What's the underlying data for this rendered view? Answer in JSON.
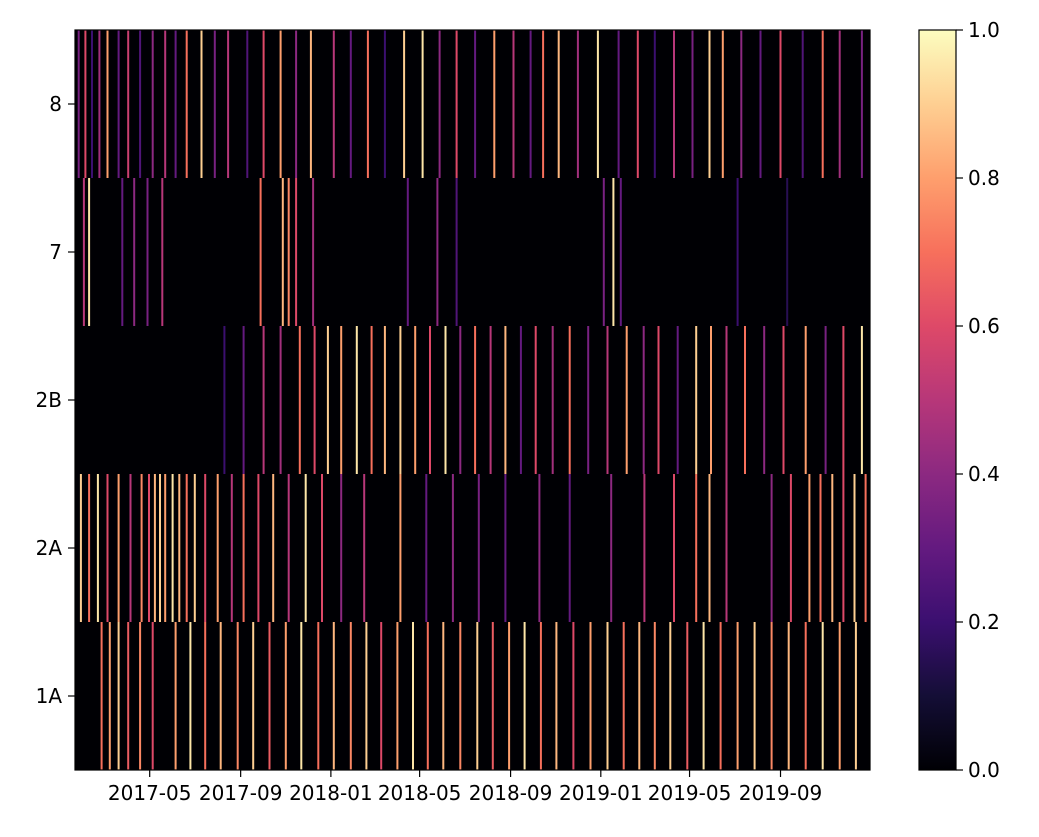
{
  "chart_data": {
    "type": "heatmap",
    "title": "",
    "xlabel": "",
    "ylabel": "",
    "rows": [
      "8",
      "7",
      "2B",
      "2A",
      "1A"
    ],
    "x_axis": {
      "type": "date",
      "range": [
        "2017-01-20",
        "2019-12-31"
      ],
      "tick_labels": [
        "2017-05",
        "2017-09",
        "2018-01",
        "2018-05",
        "2018-09",
        "2019-01",
        "2019-05",
        "2019-09"
      ],
      "tick_dates": [
        "2017-05-01",
        "2017-09-01",
        "2018-01-01",
        "2018-05-01",
        "2018-09-01",
        "2019-01-01",
        "2019-05-01",
        "2019-09-01"
      ]
    },
    "value_range": [
      0,
      1
    ],
    "colormap": "magma",
    "colorbar": {
      "tick_labels": [
        "0.0",
        "0.2",
        "0.4",
        "0.6",
        "0.8",
        "1.0"
      ],
      "tick_values": [
        0,
        0.2,
        0.4,
        0.6,
        0.8,
        1.0
      ]
    },
    "stripes": {
      "8": [
        [
          "2017-01-25",
          0.35
        ],
        [
          "2017-02-03",
          0.6
        ],
        [
          "2017-02-12",
          0.2
        ],
        [
          "2017-02-22",
          0.45
        ],
        [
          "2017-03-05",
          0.8
        ],
        [
          "2017-03-20",
          0.3
        ],
        [
          "2017-04-02",
          0.55
        ],
        [
          "2017-04-18",
          0.25
        ],
        [
          "2017-05-05",
          0.4
        ],
        [
          "2017-05-22",
          0.5
        ],
        [
          "2017-06-05",
          0.3
        ],
        [
          "2017-06-20",
          0.7
        ],
        [
          "2017-07-10",
          0.9
        ],
        [
          "2017-07-28",
          0.35
        ],
        [
          "2017-08-15",
          0.5
        ],
        [
          "2017-09-10",
          0.25
        ],
        [
          "2017-10-02",
          0.6
        ],
        [
          "2017-10-25",
          0.8
        ],
        [
          "2017-11-15",
          0.4
        ],
        [
          "2017-12-05",
          0.85
        ],
        [
          "2018-01-05",
          0.5
        ],
        [
          "2018-01-28",
          0.3
        ],
        [
          "2018-02-20",
          0.7
        ],
        [
          "2018-03-15",
          0.2
        ],
        [
          "2018-04-10",
          0.9
        ],
        [
          "2018-05-05",
          0.95
        ],
        [
          "2018-05-28",
          0.4
        ],
        [
          "2018-06-20",
          0.6
        ],
        [
          "2018-07-15",
          0.3
        ],
        [
          "2018-08-10",
          0.8
        ],
        [
          "2018-09-05",
          0.5
        ],
        [
          "2018-09-28",
          0.3
        ],
        [
          "2018-10-15",
          0.7
        ],
        [
          "2018-11-05",
          0.85
        ],
        [
          "2018-12-01",
          0.45
        ],
        [
          "2018-12-28",
          0.95
        ],
        [
          "2019-01-25",
          0.3
        ],
        [
          "2019-02-20",
          0.6
        ],
        [
          "2019-03-15",
          0.2
        ],
        [
          "2019-04-10",
          0.5
        ],
        [
          "2019-05-05",
          0.35
        ],
        [
          "2019-05-28",
          0.9
        ],
        [
          "2019-06-15",
          0.8
        ],
        [
          "2019-07-10",
          0.4
        ],
        [
          "2019-08-05",
          0.3
        ],
        [
          "2019-09-01",
          0.6
        ],
        [
          "2019-10-01",
          0.25
        ],
        [
          "2019-10-28",
          0.7
        ],
        [
          "2019-11-20",
          0.45
        ],
        [
          "2019-12-20",
          0.35
        ]
      ],
      "7": [
        [
          "2017-02-01",
          0.5
        ],
        [
          "2017-02-08",
          0.95
        ],
        [
          "2017-03-25",
          0.3
        ],
        [
          "2017-04-10",
          0.4
        ],
        [
          "2017-04-28",
          0.35
        ],
        [
          "2017-05-18",
          0.5
        ],
        [
          "2017-09-28",
          0.7
        ],
        [
          "2017-10-28",
          0.85
        ],
        [
          "2017-11-05",
          0.75
        ],
        [
          "2017-11-15",
          0.6
        ],
        [
          "2017-12-08",
          0.45
        ],
        [
          "2018-04-15",
          0.3
        ],
        [
          "2018-05-25",
          0.4
        ],
        [
          "2018-06-20",
          0.25
        ],
        [
          "2019-01-05",
          0.35
        ],
        [
          "2019-01-18",
          0.95
        ],
        [
          "2019-01-28",
          0.3
        ],
        [
          "2019-07-05",
          0.2
        ],
        [
          "2019-09-10",
          0.15
        ]
      ],
      "2B": [
        [
          "2017-08-10",
          0.2
        ],
        [
          "2017-09-05",
          0.3
        ],
        [
          "2017-10-02",
          0.5
        ],
        [
          "2017-10-25",
          0.45
        ],
        [
          "2017-11-20",
          0.7
        ],
        [
          "2017-12-10",
          0.6
        ],
        [
          "2017-12-28",
          0.9
        ],
        [
          "2018-01-15",
          0.8
        ],
        [
          "2018-02-05",
          0.95
        ],
        [
          "2018-02-25",
          0.7
        ],
        [
          "2018-03-15",
          0.85
        ],
        [
          "2018-04-05",
          0.9
        ],
        [
          "2018-04-25",
          0.8
        ],
        [
          "2018-05-15",
          0.6
        ],
        [
          "2018-06-05",
          0.95
        ],
        [
          "2018-06-25",
          0.4
        ],
        [
          "2018-07-15",
          0.7
        ],
        [
          "2018-08-05",
          0.5
        ],
        [
          "2018-08-25",
          0.85
        ],
        [
          "2018-09-15",
          0.3
        ],
        [
          "2018-10-05",
          0.6
        ],
        [
          "2018-10-28",
          0.45
        ],
        [
          "2018-11-20",
          0.7
        ],
        [
          "2018-12-15",
          0.35
        ],
        [
          "2019-01-10",
          0.5
        ],
        [
          "2019-02-05",
          0.8
        ],
        [
          "2019-02-28",
          0.4
        ],
        [
          "2019-03-20",
          0.6
        ],
        [
          "2019-04-15",
          0.3
        ],
        [
          "2019-05-10",
          0.9
        ],
        [
          "2019-05-30",
          0.8
        ],
        [
          "2019-06-20",
          0.5
        ],
        [
          "2019-07-15",
          0.7
        ],
        [
          "2019-08-10",
          0.4
        ],
        [
          "2019-09-05",
          0.6
        ],
        [
          "2019-10-05",
          0.8
        ],
        [
          "2019-11-01",
          0.35
        ],
        [
          "2019-11-25",
          0.6
        ],
        [
          "2019-12-20",
          0.95
        ]
      ],
      "2A": [
        [
          "2017-01-28",
          0.9
        ],
        [
          "2017-02-08",
          0.7
        ],
        [
          "2017-02-20",
          0.95
        ],
        [
          "2017-03-05",
          0.6
        ],
        [
          "2017-03-20",
          0.8
        ],
        [
          "2017-04-05",
          0.5
        ],
        [
          "2017-04-20",
          0.75
        ],
        [
          "2017-04-30",
          0.6
        ],
        [
          "2017-05-08",
          0.85
        ],
        [
          "2017-05-15",
          0.9
        ],
        [
          "2017-05-22",
          0.8
        ],
        [
          "2017-06-01",
          0.95
        ],
        [
          "2017-06-10",
          0.85
        ],
        [
          "2017-06-20",
          0.7
        ],
        [
          "2017-07-01",
          0.9
        ],
        [
          "2017-07-15",
          0.6
        ],
        [
          "2017-08-01",
          0.8
        ],
        [
          "2017-08-20",
          0.5
        ],
        [
          "2017-09-05",
          0.7
        ],
        [
          "2017-09-25",
          0.6
        ],
        [
          "2017-10-15",
          0.85
        ],
        [
          "2017-11-05",
          0.5
        ],
        [
          "2017-11-28",
          0.95
        ],
        [
          "2017-12-20",
          0.6
        ],
        [
          "2018-01-15",
          0.4
        ],
        [
          "2018-02-15",
          0.5
        ],
        [
          "2018-04-05",
          0.8
        ],
        [
          "2018-05-10",
          0.3
        ],
        [
          "2018-06-15",
          0.4
        ],
        [
          "2018-07-20",
          0.35
        ],
        [
          "2018-08-25",
          0.3
        ],
        [
          "2018-10-10",
          0.4
        ],
        [
          "2018-11-20",
          0.3
        ],
        [
          "2019-01-15",
          0.4
        ],
        [
          "2019-03-01",
          0.5
        ],
        [
          "2019-04-10",
          0.6
        ],
        [
          "2019-05-10",
          0.7
        ],
        [
          "2019-05-28",
          0.85
        ],
        [
          "2019-06-20",
          0.5
        ],
        [
          "2019-08-20",
          0.4
        ],
        [
          "2019-09-15",
          0.6
        ],
        [
          "2019-10-10",
          0.8
        ],
        [
          "2019-10-25",
          0.7
        ],
        [
          "2019-11-10",
          0.85
        ],
        [
          "2019-11-25",
          0.6
        ],
        [
          "2019-12-10",
          0.9
        ],
        [
          "2019-12-25",
          0.7
        ]
      ],
      "1A": [
        [
          "2017-02-25",
          0.7
        ],
        [
          "2017-03-08",
          0.8
        ],
        [
          "2017-03-20",
          0.9
        ],
        [
          "2017-04-02",
          0.65
        ],
        [
          "2017-04-18",
          0.75
        ],
        [
          "2017-05-05",
          0.6
        ],
        [
          "2017-06-05",
          0.8
        ],
        [
          "2017-06-25",
          0.95
        ],
        [
          "2017-07-15",
          0.7
        ],
        [
          "2017-08-05",
          0.85
        ],
        [
          "2017-08-28",
          0.75
        ],
        [
          "2017-09-18",
          0.9
        ],
        [
          "2017-10-10",
          0.65
        ],
        [
          "2017-11-01",
          0.8
        ],
        [
          "2017-11-22",
          0.95
        ],
        [
          "2017-12-15",
          0.7
        ],
        [
          "2018-01-05",
          0.85
        ],
        [
          "2018-01-28",
          0.75
        ],
        [
          "2018-02-18",
          0.9
        ],
        [
          "2018-03-10",
          0.6
        ],
        [
          "2018-04-01",
          0.8
        ],
        [
          "2018-04-22",
          0.95
        ],
        [
          "2018-05-12",
          0.7
        ],
        [
          "2018-06-02",
          0.85
        ],
        [
          "2018-06-25",
          0.75
        ],
        [
          "2018-07-18",
          0.9
        ],
        [
          "2018-08-08",
          0.65
        ],
        [
          "2018-08-30",
          0.8
        ],
        [
          "2018-09-20",
          0.95
        ],
        [
          "2018-10-12",
          0.7
        ],
        [
          "2018-11-02",
          0.85
        ],
        [
          "2018-11-25",
          0.6
        ],
        [
          "2018-12-18",
          0.8
        ],
        [
          "2019-01-10",
          0.9
        ],
        [
          "2019-02-01",
          0.7
        ],
        [
          "2019-02-22",
          0.85
        ],
        [
          "2019-03-15",
          0.75
        ],
        [
          "2019-04-05",
          0.9
        ],
        [
          "2019-04-28",
          0.65
        ],
        [
          "2019-05-20",
          0.95
        ],
        [
          "2019-06-12",
          0.7
        ],
        [
          "2019-07-05",
          0.8
        ],
        [
          "2019-07-28",
          0.9
        ],
        [
          "2019-08-20",
          0.75
        ],
        [
          "2019-09-12",
          0.85
        ],
        [
          "2019-10-05",
          0.7
        ],
        [
          "2019-10-28",
          0.95
        ],
        [
          "2019-11-20",
          0.8
        ],
        [
          "2019-12-12",
          0.9
        ]
      ]
    }
  }
}
